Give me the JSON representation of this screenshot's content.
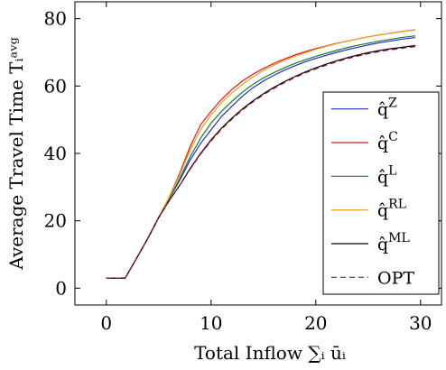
{
  "chart_data": {
    "type": "line",
    "title": "",
    "xlabel": "Total Inflow ∑ᵢ ūᵢ",
    "ylabel": "Average Travel Time Tᵢᵃᵛᵍ",
    "xlim": [
      -3,
      32
    ],
    "ylim": [
      -5,
      85
    ],
    "xticks": [
      0,
      10,
      20,
      30
    ],
    "yticks": [
      0,
      20,
      40,
      60,
      80
    ],
    "xtick_labels": [
      "0",
      "10",
      "20",
      "30"
    ],
    "ytick_labels": [
      "0",
      "20",
      "40",
      "60",
      "80"
    ],
    "grid": false,
    "legend_position": "bottom-right",
    "x": [
      0,
      1.8,
      3,
      4,
      5,
      6,
      7,
      8,
      9,
      10,
      11,
      12,
      13,
      14,
      15,
      16,
      17,
      18,
      19,
      20,
      21,
      22,
      23,
      24,
      25,
      26,
      27,
      28,
      29,
      29.5
    ],
    "series": [
      {
        "name": "q̂Z",
        "label_base": "q̂",
        "label_sup": "Z",
        "color": "#1f2bd6",
        "dash": false,
        "values": [
          3,
          3,
          9.5,
          15,
          21,
          26.5,
          32,
          38,
          43,
          47,
          51,
          54,
          57,
          59.5,
          61.5,
          63.2,
          64.7,
          66,
          67.2,
          68.2,
          69.1,
          70,
          70.8,
          71.5,
          72.2,
          72.8,
          73.3,
          73.8,
          74.2,
          74.4
        ]
      },
      {
        "name": "q̂C",
        "label_base": "q̂",
        "label_sup": "C",
        "color": "#e0141e",
        "dash": false,
        "values": [
          3,
          3,
          9.5,
          15,
          21,
          27,
          34,
          42,
          48.5,
          52.5,
          56,
          59,
          61.5,
          63.5,
          65.2,
          66.7,
          68,
          69.2,
          70.2,
          71.1,
          71.9,
          72.7,
          73.3,
          74,
          74.6,
          75.1,
          75.6,
          76.1,
          76.5,
          76.7
        ]
      },
      {
        "name": "q̂L",
        "label_base": "q̂",
        "label_sup": "L",
        "color": "#1a7a1a",
        "dash": false,
        "values": [
          3,
          3,
          9.5,
          15,
          21,
          26.5,
          32.5,
          39,
          44.5,
          49,
          52.5,
          55.5,
          58.2,
          60.5,
          62.4,
          64,
          65.4,
          66.7,
          67.8,
          68.8,
          69.7,
          70.6,
          71.4,
          72.1,
          72.7,
          73.3,
          73.8,
          74.3,
          74.7,
          74.9
        ]
      },
      {
        "name": "q̂RL",
        "label_base": "q̂",
        "label_sup": "RL",
        "color": "#e6a01e",
        "dash": false,
        "values": [
          3,
          3,
          9.5,
          15,
          21,
          27,
          33.5,
          41,
          47,
          51.5,
          55,
          58,
          60.5,
          62.7,
          64.6,
          66.2,
          67.6,
          68.8,
          69.9,
          70.9,
          71.8,
          72.6,
          73.3,
          74,
          74.6,
          75.1,
          75.6,
          76.1,
          76.5,
          76.7
        ]
      },
      {
        "name": "q̂ML",
        "label_base": "q̂",
        "label_sup": "ML",
        "color": "#000000",
        "dash": false,
        "values": [
          3,
          3,
          9.5,
          15,
          21,
          26,
          30.5,
          35.5,
          40,
          44,
          47.5,
          50.5,
          53.2,
          55.6,
          57.7,
          59.6,
          61.3,
          62.8,
          64.2,
          65.4,
          66.5,
          67.5,
          68.4,
          69.2,
          69.9,
          70.5,
          71,
          71.4,
          71.8,
          72
        ]
      },
      {
        "name": "OPT",
        "label_base": "OPT",
        "label_sup": "",
        "color": "#9b1236",
        "dash": true,
        "values": [
          3,
          3,
          9.5,
          15,
          21,
          26,
          30.5,
          35.3,
          39.8,
          43.7,
          47.2,
          50.2,
          52.9,
          55.3,
          57.4,
          59.3,
          61,
          62.5,
          63.9,
          65.1,
          66.2,
          67.2,
          68.1,
          68.9,
          69.6,
          70.2,
          70.7,
          71.1,
          71.5,
          71.7
        ]
      }
    ]
  }
}
